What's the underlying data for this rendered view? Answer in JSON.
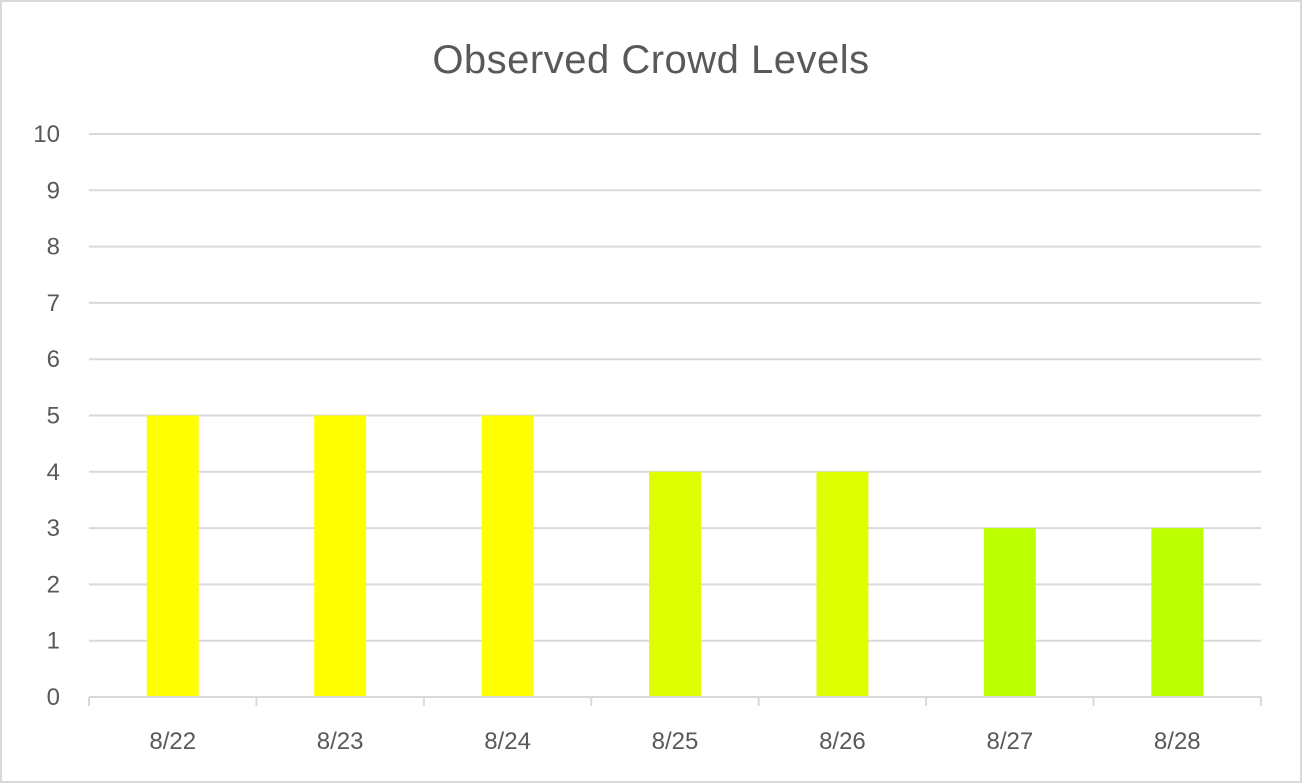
{
  "chart_data": {
    "type": "bar",
    "title": "Observed Crowd Levels",
    "xlabel": "",
    "ylabel": "",
    "categories": [
      "8/22",
      "8/23",
      "8/24",
      "8/25",
      "8/26",
      "8/27",
      "8/28"
    ],
    "values": [
      5,
      5,
      5,
      4,
      4,
      3,
      3
    ],
    "bar_colors": [
      "#ffff00",
      "#ffff00",
      "#ffff00",
      "#ddff00",
      "#ddff00",
      "#bbff00",
      "#bbff00"
    ],
    "ylim": [
      0,
      10
    ],
    "y_ticks": [
      0,
      1,
      2,
      3,
      4,
      5,
      6,
      7,
      8,
      9,
      10
    ],
    "grid": true,
    "legend": "none"
  },
  "colors": {
    "gridline": "#d9d9d9",
    "axis": "#d9d9d9",
    "text": "#595959"
  }
}
